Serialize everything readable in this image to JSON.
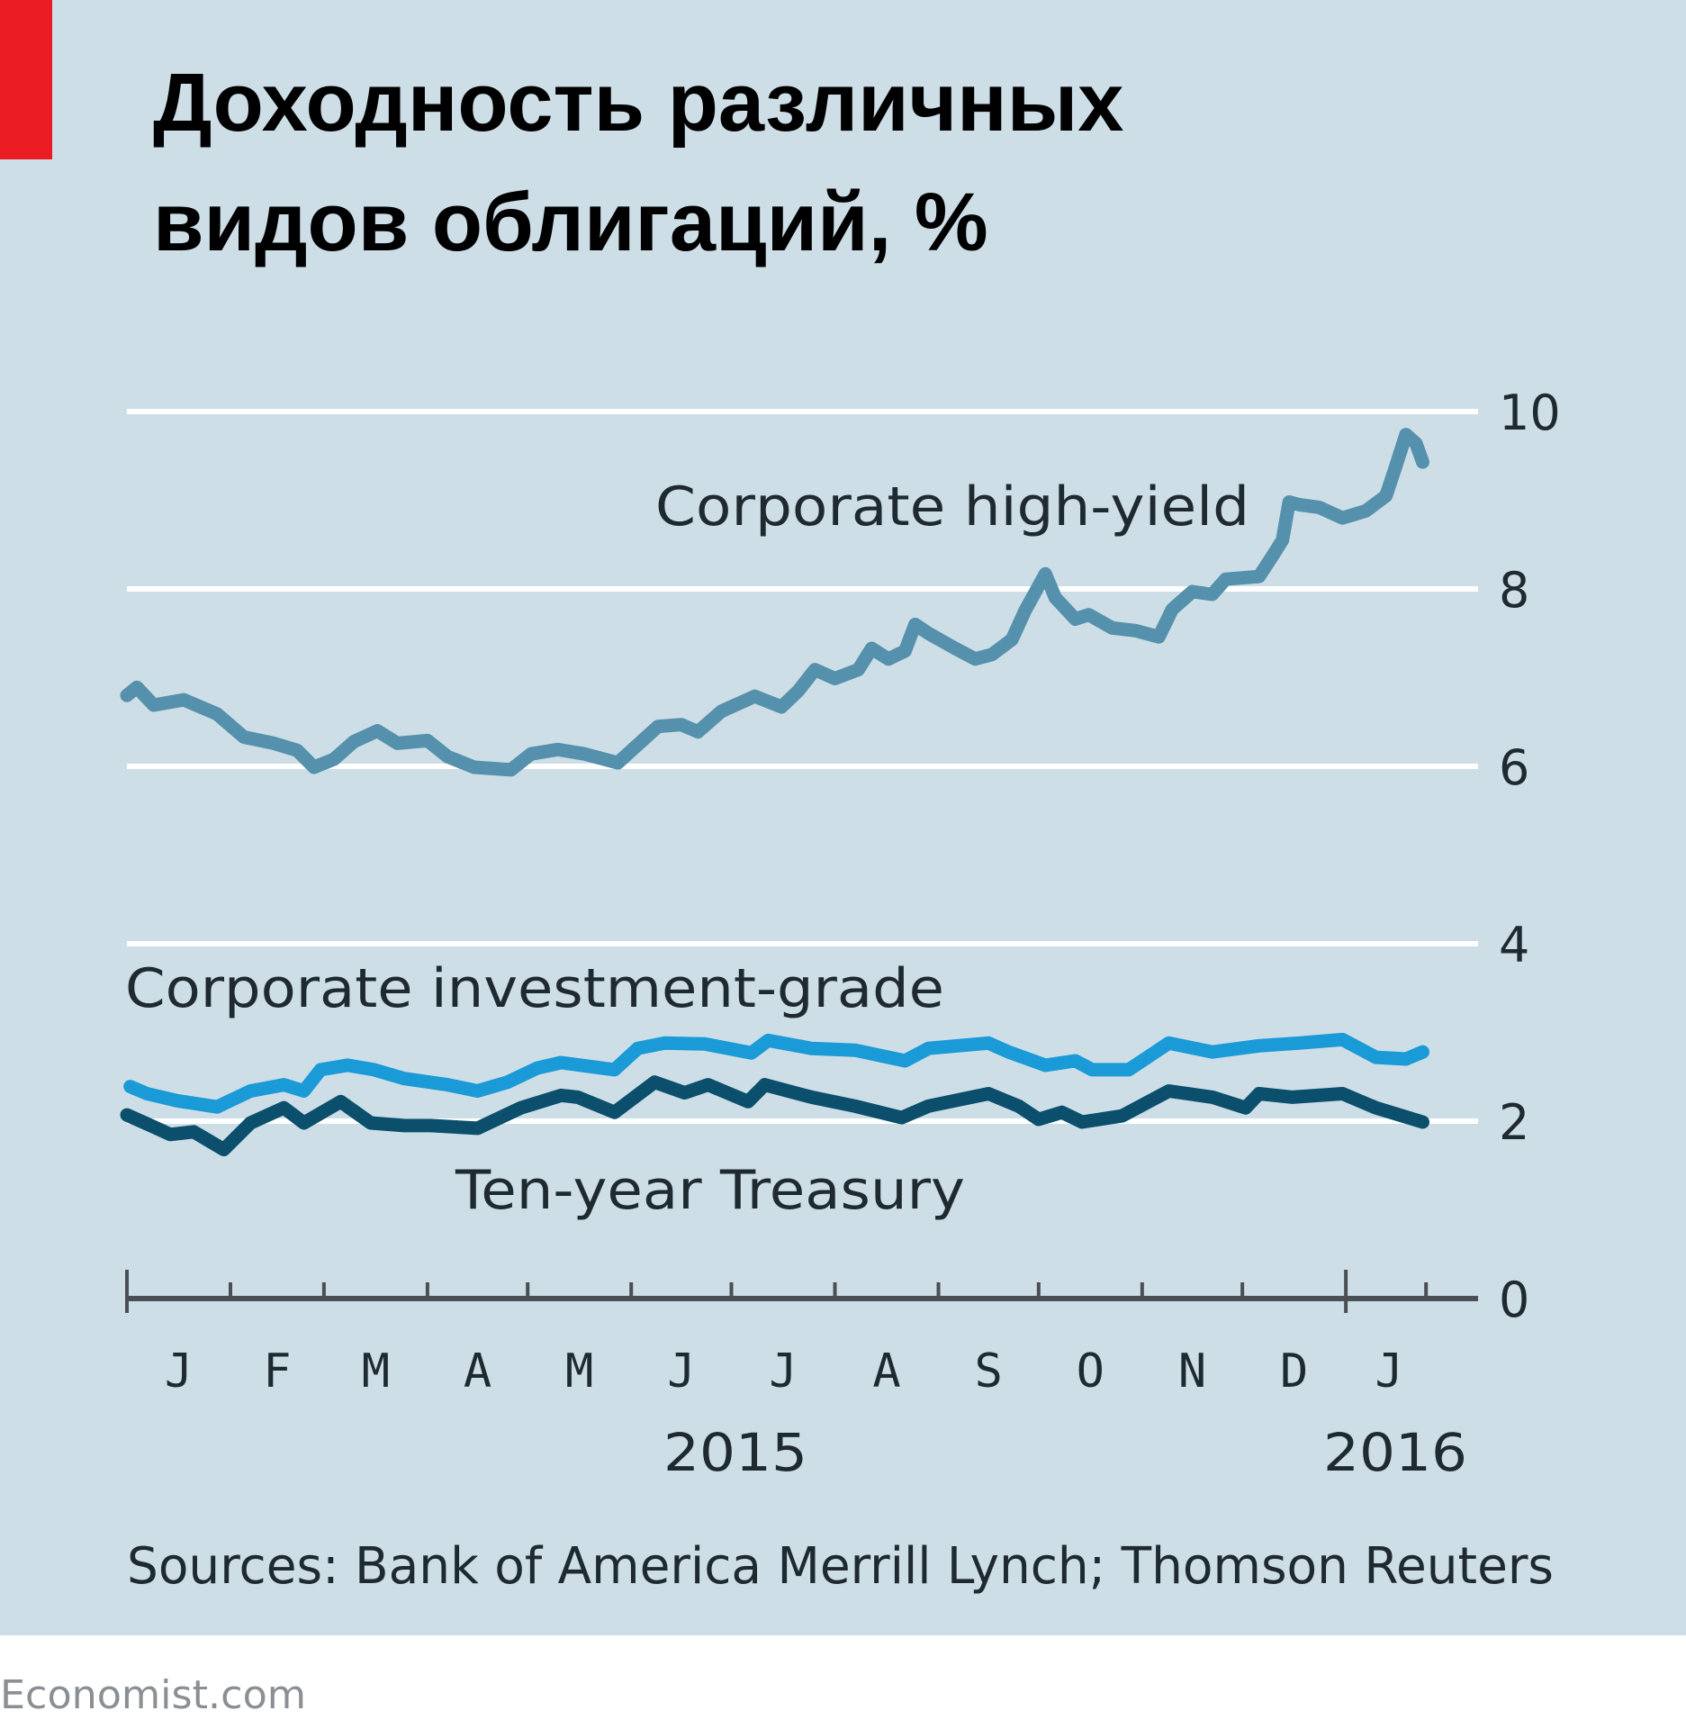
{
  "colors": {
    "background": "#cddee7",
    "accent_bar": "#ec1c24",
    "gridline": "#ffffff",
    "axis": "#4a4f53",
    "high_yield": "#5591ac",
    "investment_grade": "#1a9ad6",
    "treasury": "#0b4f6c"
  },
  "footer": {
    "brand": "Economist.com"
  },
  "chart_data": {
    "type": "line",
    "title": "Доходность различных видов облигаций, %",
    "title_lines": [
      "Доходность различных",
      "видов облигаций, %"
    ],
    "xlabel": "",
    "ylabel": "%",
    "ylim": [
      0,
      10
    ],
    "yticks": [
      0,
      2,
      4,
      6,
      8,
      10
    ],
    "ytick_labels": [
      "0",
      "2",
      "4",
      "6",
      "8",
      "10"
    ],
    "xlim": [
      "2015-01-01",
      "2016-01-31"
    ],
    "month_labels": [
      "J",
      "F",
      "M",
      "A",
      "M",
      "J",
      "J",
      "A",
      "S",
      "O",
      "N",
      "D",
      "J"
    ],
    "year_labels": [
      "2015",
      "2016"
    ],
    "grid": true,
    "source": "Sources: Bank of America Merrill Lynch; Thomson Reuters",
    "series": [
      {
        "name": "Corporate high-yield",
        "color_key": "high_yield",
        "points": [
          [
            "2015-01-01",
            6.8
          ],
          [
            "2015-01-04",
            6.89
          ],
          [
            "2015-01-09",
            6.69
          ],
          [
            "2015-01-18",
            6.75
          ],
          [
            "2015-01-28",
            6.59
          ],
          [
            "2015-02-05",
            6.33
          ],
          [
            "2015-02-14",
            6.26
          ],
          [
            "2015-02-21",
            6.18
          ],
          [
            "2015-02-26",
            5.99
          ],
          [
            "2015-03-04",
            6.08
          ],
          [
            "2015-03-10",
            6.28
          ],
          [
            "2015-03-17",
            6.4
          ],
          [
            "2015-03-23",
            6.26
          ],
          [
            "2015-04-01",
            6.29
          ],
          [
            "2015-04-07",
            6.11
          ],
          [
            "2015-04-15",
            5.99
          ],
          [
            "2015-04-26",
            5.96
          ],
          [
            "2015-05-02",
            6.14
          ],
          [
            "2015-05-10",
            6.19
          ],
          [
            "2015-05-18",
            6.14
          ],
          [
            "2015-05-28",
            6.04
          ],
          [
            "2015-06-02",
            6.21
          ],
          [
            "2015-06-09",
            6.45
          ],
          [
            "2015-06-16",
            6.47
          ],
          [
            "2015-06-21",
            6.39
          ],
          [
            "2015-06-28",
            6.62
          ],
          [
            "2015-07-08",
            6.79
          ],
          [
            "2015-07-16",
            6.67
          ],
          [
            "2015-07-21",
            6.85
          ],
          [
            "2015-07-26",
            7.09
          ],
          [
            "2015-08-01",
            6.99
          ],
          [
            "2015-08-08",
            7.09
          ],
          [
            "2015-08-12",
            7.33
          ],
          [
            "2015-08-17",
            7.21
          ],
          [
            "2015-08-22",
            7.3
          ],
          [
            "2015-08-25",
            7.6
          ],
          [
            "2015-08-29",
            7.5
          ],
          [
            "2015-09-06",
            7.33
          ],
          [
            "2015-09-12",
            7.21
          ],
          [
            "2015-09-17",
            7.26
          ],
          [
            "2015-09-23",
            7.43
          ],
          [
            "2015-09-27",
            7.76
          ],
          [
            "2015-10-03",
            8.17
          ],
          [
            "2015-10-06",
            7.9
          ],
          [
            "2015-10-12",
            7.66
          ],
          [
            "2015-10-16",
            7.71
          ],
          [
            "2015-10-23",
            7.56
          ],
          [
            "2015-10-30",
            7.53
          ],
          [
            "2015-11-06",
            7.46
          ],
          [
            "2015-11-10",
            7.77
          ],
          [
            "2015-11-16",
            7.97
          ],
          [
            "2015-11-22",
            7.94
          ],
          [
            "2015-11-26",
            8.11
          ],
          [
            "2015-12-06",
            8.14
          ],
          [
            "2015-12-10",
            8.37
          ],
          [
            "2015-12-13",
            8.55
          ],
          [
            "2015-12-15",
            8.98
          ],
          [
            "2015-12-18",
            8.95
          ],
          [
            "2015-12-24",
            8.92
          ],
          [
            "2015-12-31",
            8.8
          ],
          [
            "2016-01-07",
            8.88
          ],
          [
            "2016-01-13",
            9.05
          ],
          [
            "2016-01-16",
            9.39
          ],
          [
            "2016-01-19",
            9.74
          ],
          [
            "2016-01-22",
            9.64
          ],
          [
            "2016-01-24",
            9.43
          ]
        ]
      },
      {
        "name": "Corporate investment-grade",
        "color_key": "investment_grade",
        "points": [
          [
            "2015-01-02",
            2.39
          ],
          [
            "2015-01-07",
            2.31
          ],
          [
            "2015-01-16",
            2.23
          ],
          [
            "2015-01-28",
            2.16
          ],
          [
            "2015-02-07",
            2.34
          ],
          [
            "2015-02-17",
            2.41
          ],
          [
            "2015-02-23",
            2.34
          ],
          [
            "2015-02-28",
            2.58
          ],
          [
            "2015-03-08",
            2.63
          ],
          [
            "2015-03-16",
            2.58
          ],
          [
            "2015-03-25",
            2.48
          ],
          [
            "2015-04-07",
            2.41
          ],
          [
            "2015-04-16",
            2.34
          ],
          [
            "2015-04-25",
            2.44
          ],
          [
            "2015-05-04",
            2.6
          ],
          [
            "2015-05-11",
            2.66
          ],
          [
            "2015-05-27",
            2.58
          ],
          [
            "2015-06-03",
            2.82
          ],
          [
            "2015-06-11",
            2.88
          ],
          [
            "2015-06-23",
            2.87
          ],
          [
            "2015-07-07",
            2.77
          ],
          [
            "2015-07-12",
            2.91
          ],
          [
            "2015-07-25",
            2.82
          ],
          [
            "2015-08-07",
            2.8
          ],
          [
            "2015-08-22",
            2.68
          ],
          [
            "2015-08-29",
            2.82
          ],
          [
            "2015-09-16",
            2.88
          ],
          [
            "2015-09-22",
            2.78
          ],
          [
            "2015-10-03",
            2.63
          ],
          [
            "2015-10-12",
            2.68
          ],
          [
            "2015-10-17",
            2.58
          ],
          [
            "2015-10-28",
            2.58
          ],
          [
            "2015-11-09",
            2.88
          ],
          [
            "2015-11-22",
            2.78
          ],
          [
            "2015-12-06",
            2.85
          ],
          [
            "2015-12-18",
            2.88
          ],
          [
            "2015-12-31",
            2.92
          ],
          [
            "2016-01-10",
            2.72
          ],
          [
            "2016-01-19",
            2.7
          ],
          [
            "2016-01-24",
            2.78
          ]
        ]
      },
      {
        "name": "Ten-year Treasury",
        "color_key": "treasury",
        "points": [
          [
            "2015-01-01",
            2.07
          ],
          [
            "2015-01-07",
            1.97
          ],
          [
            "2015-01-14",
            1.85
          ],
          [
            "2015-01-21",
            1.88
          ],
          [
            "2015-01-30",
            1.68
          ],
          [
            "2015-02-07",
            1.98
          ],
          [
            "2015-02-17",
            2.15
          ],
          [
            "2015-02-23",
            1.98
          ],
          [
            "2015-03-06",
            2.22
          ],
          [
            "2015-03-15",
            1.98
          ],
          [
            "2015-03-25",
            1.95
          ],
          [
            "2015-04-02",
            1.95
          ],
          [
            "2015-04-16",
            1.92
          ],
          [
            "2015-04-29",
            2.15
          ],
          [
            "2015-05-11",
            2.29
          ],
          [
            "2015-05-16",
            2.27
          ],
          [
            "2015-05-27",
            2.1
          ],
          [
            "2015-06-08",
            2.44
          ],
          [
            "2015-06-17",
            2.32
          ],
          [
            "2015-06-24",
            2.41
          ],
          [
            "2015-07-06",
            2.22
          ],
          [
            "2015-07-11",
            2.41
          ],
          [
            "2015-07-25",
            2.27
          ],
          [
            "2015-08-07",
            2.17
          ],
          [
            "2015-08-21",
            2.04
          ],
          [
            "2015-08-29",
            2.17
          ],
          [
            "2015-09-16",
            2.31
          ],
          [
            "2015-09-25",
            2.17
          ],
          [
            "2015-10-01",
            2.02
          ],
          [
            "2015-10-08",
            2.1
          ],
          [
            "2015-10-14",
            1.99
          ],
          [
            "2015-10-26",
            2.06
          ],
          [
            "2015-11-09",
            2.34
          ],
          [
            "2015-11-22",
            2.27
          ],
          [
            "2015-12-02",
            2.15
          ],
          [
            "2015-12-06",
            2.31
          ],
          [
            "2015-12-16",
            2.27
          ],
          [
            "2015-12-31",
            2.31
          ],
          [
            "2016-01-10",
            2.15
          ],
          [
            "2016-01-24",
            1.99
          ]
        ]
      }
    ]
  }
}
